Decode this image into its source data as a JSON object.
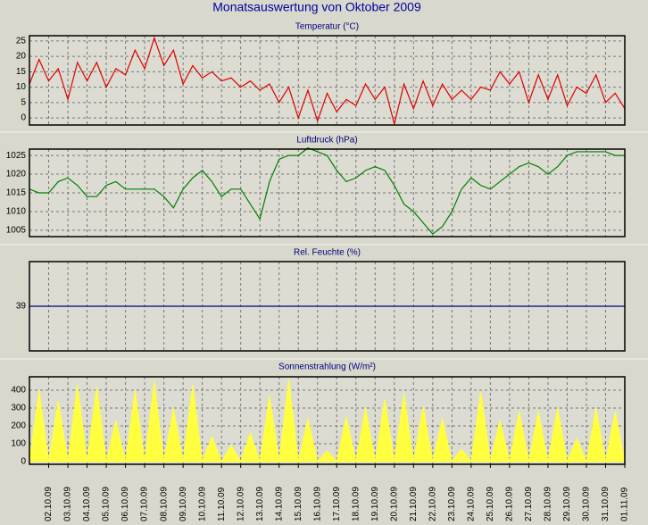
{
  "chart_data": [
    {
      "type": "line",
      "title": "Temperatur (°C)",
      "color": "#dd0000",
      "x": [
        1,
        1.5,
        2,
        2.5,
        3,
        3.5,
        4,
        4.5,
        5,
        5.5,
        6,
        6.5,
        7,
        7.5,
        8,
        8.5,
        9,
        9.5,
        10,
        10.5,
        11,
        11.5,
        12,
        12.5,
        13,
        13.5,
        14,
        14.5,
        15,
        15.5,
        16,
        16.5,
        17,
        17.5,
        18,
        18.5,
        19,
        19.5,
        20,
        20.5,
        21,
        21.5,
        22,
        22.5,
        23,
        23.5,
        24,
        24.5,
        25,
        25.5,
        26,
        26.5,
        27,
        27.5,
        28,
        28.5,
        29,
        29.5,
        30,
        30.5,
        31,
        31.5,
        32
      ],
      "values": [
        11,
        19,
        12,
        16,
        6,
        18,
        12,
        18,
        10,
        16,
        14,
        22,
        16,
        26,
        17,
        22,
        11,
        17,
        13,
        15,
        12,
        13,
        10,
        12,
        9,
        11,
        5,
        10,
        0,
        9,
        -1,
        8,
        2,
        6,
        4,
        11,
        6,
        10,
        -2,
        11,
        3,
        12,
        4,
        11,
        6,
        9,
        6,
        10,
        9,
        15,
        11,
        15,
        5,
        14,
        6,
        14,
        4,
        10,
        8,
        14,
        5,
        8,
        3
      ],
      "ylim": [
        -2.3,
        26.7
      ],
      "yticks": [
        0,
        5,
        10,
        15,
        20,
        25
      ]
    },
    {
      "type": "line",
      "title": "Luftdruck (hPa)",
      "color": "#008000",
      "x": [
        1,
        1.5,
        2,
        2.5,
        3,
        3.5,
        4,
        4.5,
        5,
        5.5,
        6,
        6.5,
        7,
        7.5,
        8,
        8.5,
        9,
        9.5,
        10,
        10.5,
        11,
        11.5,
        12,
        12.5,
        13,
        13.5,
        14,
        14.5,
        15,
        15.5,
        16,
        16.5,
        17,
        17.5,
        18,
        18.5,
        19,
        19.5,
        20,
        20.5,
        21,
        21.5,
        22,
        22.5,
        23,
        23.5,
        24,
        24.5,
        25,
        25.5,
        26,
        26.5,
        27,
        27.5,
        28,
        28.5,
        29,
        29.5,
        30,
        30.5,
        31,
        31.5,
        32
      ],
      "values": [
        1016,
        1015,
        1015,
        1018,
        1019,
        1017,
        1014,
        1014,
        1017,
        1018,
        1016,
        1016,
        1016,
        1016,
        1014,
        1011,
        1016,
        1019,
        1021,
        1018,
        1014,
        1016,
        1016,
        1012,
        1008,
        1018,
        1024,
        1025,
        1025,
        1027,
        1026,
        1025,
        1021,
        1018,
        1019,
        1021,
        1022,
        1021,
        1017,
        1012,
        1010,
        1007,
        1004,
        1006,
        1010,
        1016,
        1019,
        1017,
        1016,
        1018,
        1020,
        1022,
        1023,
        1022,
        1020,
        1022,
        1025,
        1026,
        1026,
        1026,
        1026,
        1025,
        1025
      ],
      "ylim": [
        1003.3,
        1026.7
      ],
      "yticks": [
        1005,
        1010,
        1015,
        1020,
        1025
      ]
    },
    {
      "type": "line",
      "title": "Rel. Feuchte (%)",
      "color": "#000080",
      "x": [
        1,
        32
      ],
      "values": [
        39,
        39
      ],
      "ylim": [
        38,
        40
      ],
      "yticks": [
        39
      ]
    },
    {
      "type": "area",
      "title": "Sonnenstrahlung (W/m²)",
      "color": "#ffff40",
      "x": [
        1,
        1.5,
        2,
        2.5,
        3,
        3.5,
        4,
        4.5,
        5,
        5.5,
        6,
        6.5,
        7,
        7.5,
        8,
        8.5,
        9,
        9.5,
        10,
        10.5,
        11,
        11.5,
        12,
        12.5,
        13,
        13.5,
        14,
        14.5,
        15,
        15.5,
        16,
        16.5,
        17,
        17.5,
        18,
        18.5,
        19,
        19.5,
        20,
        20.5,
        21,
        21.5,
        22,
        22.5,
        23,
        23.5,
        24,
        24.5,
        25,
        25.5,
        26,
        26.5,
        27,
        27.5,
        28,
        28.5,
        29,
        29.5,
        30,
        30.5,
        31,
        31.5,
        32
      ],
      "values": [
        0,
        400,
        0,
        340,
        0,
        430,
        0,
        420,
        0,
        230,
        0,
        400,
        0,
        450,
        0,
        300,
        0,
        430,
        0,
        140,
        0,
        90,
        0,
        160,
        0,
        370,
        0,
        460,
        0,
        240,
        0,
        60,
        0,
        250,
        0,
        300,
        0,
        350,
        0,
        380,
        0,
        310,
        0,
        240,
        0,
        70,
        0,
        390,
        0,
        230,
        0,
        280,
        0,
        280,
        0,
        300,
        0,
        130,
        0,
        300,
        0,
        280,
        0
      ],
      "ylim": [
        -15,
        475
      ],
      "yticks": [
        0,
        100,
        200,
        300,
        400
      ],
      "xlim": [
        1,
        32
      ],
      "xticks": [
        {
          "value": 2,
          "label": "02.10.09"
        },
        {
          "value": 3,
          "label": "03.10.09"
        },
        {
          "value": 4,
          "label": "04.10.09"
        },
        {
          "value": 5,
          "label": "05.10.09"
        },
        {
          "value": 6,
          "label": "06.10.09"
        },
        {
          "value": 7,
          "label": "07.10.09"
        },
        {
          "value": 8,
          "label": "08.10.09"
        },
        {
          "value": 9,
          "label": "09.10.09"
        },
        {
          "value": 10,
          "label": "10.10.09"
        },
        {
          "value": 11,
          "label": "11.10.09"
        },
        {
          "value": 12,
          "label": "12.10.09"
        },
        {
          "value": 13,
          "label": "13.10.09"
        },
        {
          "value": 14,
          "label": "14.10.09"
        },
        {
          "value": 15,
          "label": "15.10.09"
        },
        {
          "value": 16,
          "label": "16.10.09"
        },
        {
          "value": 17,
          "label": "17.10.09"
        },
        {
          "value": 18,
          "label": "18.10.09"
        },
        {
          "value": 19,
          "label": "19.10.09"
        },
        {
          "value": 20,
          "label": "20.10.09"
        },
        {
          "value": 21,
          "label": "21.10.09"
        },
        {
          "value": 22,
          "label": "22.10.09"
        },
        {
          "value": 23,
          "label": "23.10.09"
        },
        {
          "value": 24,
          "label": "24.10.09"
        },
        {
          "value": 25,
          "label": "25.10.09"
        },
        {
          "value": 26,
          "label": "26.10.09"
        },
        {
          "value": 27,
          "label": "27.10.09"
        },
        {
          "value": 28,
          "label": "28.10.09"
        },
        {
          "value": 29,
          "label": "29.10.09"
        },
        {
          "value": 30,
          "label": "30.10.09"
        },
        {
          "value": 31,
          "label": "31.10.09"
        },
        {
          "value": 32,
          "label": "01.11.09"
        }
      ]
    }
  ],
  "title": "Monatsauswertung von Oktober 2009"
}
